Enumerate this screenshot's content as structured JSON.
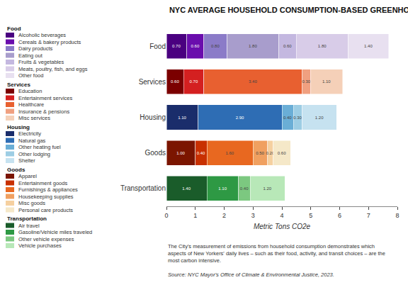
{
  "chart_data": {
    "type": "bar",
    "orientation": "horizontal",
    "stacked": true,
    "data_labels": true,
    "grid": false,
    "legend": "left",
    "title": "NYC AVERAGE HOUSEHOLD CONSUMPTION-BASED GREENHOUSE GAS INVENTORY",
    "xlabel": "Metric Tons CO2e",
    "footnote": "The City's measurement of emissions from household consumption demonstrates which\naspects of New Yorkers' daily lives – such as their food, activity, and transit choices – are the\nmost carbon intensive.",
    "source": "Source: NYC Mayor's Office of Climate & Environmental Justice, 2023.",
    "categories": [
      "Food",
      "Services",
      "Housing",
      "Goods",
      "Transportation"
    ],
    "xlim": [
      0,
      8
    ],
    "xticks": [
      0,
      1,
      2,
      3,
      4,
      5,
      6,
      7,
      8
    ],
    "series": [
      {
        "name": "Alcoholic beverages",
        "color": "#4a0080",
        "values": [
          0.7,
          null,
          null,
          null,
          null
        ],
        "value_labels": [
          "0.70",
          null,
          null,
          null,
          null
        ]
      },
      {
        "name": "Cereals & bakery products",
        "color": "#6a0dad",
        "values": [
          0.6,
          null,
          null,
          null,
          null
        ],
        "value_labels": [
          "0.60",
          null,
          null,
          null,
          null
        ]
      },
      {
        "name": "Dairy products",
        "color": "#8b7bc8",
        "values": [
          0.8,
          null,
          null,
          null,
          null
        ],
        "value_labels": [
          "0.80",
          null,
          null,
          null,
          null
        ]
      },
      {
        "name": "Eating out",
        "color": "#a89dcc",
        "values": [
          1.8,
          null,
          null,
          null,
          null
        ],
        "value_labels": [
          "1.80",
          null,
          null,
          null,
          null
        ]
      },
      {
        "name": "Fruits & vegetables",
        "color": "#c4b8e0",
        "values": [
          0.6,
          null,
          null,
          null,
          null
        ],
        "value_labels": [
          "0.60",
          null,
          null,
          null,
          null
        ]
      },
      {
        "name": "Meats, poultry, fish, and eggs",
        "color": "#d8cce8",
        "values": [
          1.8,
          null,
          null,
          null,
          null
        ],
        "value_labels": [
          "1.80",
          null,
          null,
          null,
          null
        ]
      },
      {
        "name": "Other food",
        "color": "#e8e0f0",
        "values": [
          1.4,
          null,
          null,
          null,
          null
        ],
        "value_labels": [
          "1.40",
          null,
          null,
          null,
          null
        ]
      },
      {
        "name": "Education",
        "color": "#7b0000",
        "values": [
          null,
          0.6,
          null,
          null,
          null
        ],
        "value_labels": [
          null,
          "0.60",
          null,
          null,
          null
        ]
      },
      {
        "name": "Entertainment services",
        "color": "#d42020",
        "values": [
          null,
          0.7,
          null,
          null,
          null
        ],
        "value_labels": [
          null,
          "0.70",
          null,
          null,
          null
        ]
      },
      {
        "name": "Healthcare",
        "color": "#e86030",
        "values": [
          null,
          3.4,
          null,
          null,
          null
        ],
        "value_labels": [
          null,
          "3.40",
          null,
          null,
          null
        ]
      },
      {
        "name": "Insurance & pensions",
        "color": "#f0a080",
        "values": [
          null,
          0.3,
          null,
          null,
          null
        ],
        "value_labels": [
          null,
          "0.30",
          null,
          null,
          null
        ]
      },
      {
        "name": "Misc services",
        "color": "#f5d0b8",
        "values": [
          null,
          1.1,
          null,
          null,
          null
        ],
        "value_labels": [
          null,
          "1.10",
          null,
          null,
          null
        ]
      },
      {
        "name": "Electricity",
        "color": "#1a2d6b",
        "values": [
          null,
          null,
          1.1,
          null,
          null
        ],
        "value_labels": [
          null,
          null,
          "1.10",
          null,
          null
        ]
      },
      {
        "name": "Natural gas",
        "color": "#2e6db4",
        "values": [
          null,
          null,
          2.9,
          null,
          null
        ],
        "value_labels": [
          null,
          null,
          "2.90",
          null,
          null
        ]
      },
      {
        "name": "Other heating fuel",
        "color": "#6aaed6",
        "values": [
          null,
          null,
          0.4,
          null,
          null
        ],
        "value_labels": [
          null,
          null,
          "0.40",
          null,
          null
        ]
      },
      {
        "name": "Other lodging",
        "color": "#9dcde4",
        "values": [
          null,
          null,
          0.3,
          null,
          null
        ],
        "value_labels": [
          null,
          null,
          "0.30",
          null,
          null
        ]
      },
      {
        "name": "Shelter",
        "color": "#c6e2f0",
        "values": [
          null,
          null,
          1.2,
          null,
          null
        ],
        "value_labels": [
          null,
          null,
          "1.20",
          null,
          null
        ]
      },
      {
        "name": "Apparel",
        "color": "#7b1500",
        "values": [
          null,
          null,
          null,
          1.0,
          null
        ],
        "value_labels": [
          null,
          null,
          null,
          "1.00",
          null
        ]
      },
      {
        "name": "Entertainment goods",
        "color": "#c83000",
        "values": [
          null,
          null,
          null,
          0.4,
          null
        ],
        "value_labels": [
          null,
          null,
          null,
          "0.40",
          null
        ]
      },
      {
        "name": "Furnishings & appliances",
        "color": "#e86820",
        "values": [
          null,
          null,
          null,
          1.6,
          null
        ],
        "value_labels": [
          null,
          null,
          null,
          "1.60",
          null
        ]
      },
      {
        "name": "Housekeeping supplies",
        "color": "#f0a060",
        "values": [
          null,
          null,
          null,
          0.5,
          null
        ],
        "value_labels": [
          null,
          null,
          null,
          "0.50",
          null
        ]
      },
      {
        "name": "Misc goods",
        "color": "#f5d0a0",
        "values": [
          null,
          null,
          null,
          0.2,
          null
        ],
        "value_labels": [
          null,
          null,
          null,
          "0.20",
          null
        ]
      },
      {
        "name": "Personal care products",
        "color": "#f5e8c8",
        "values": [
          null,
          null,
          null,
          0.6,
          null
        ],
        "value_labels": [
          null,
          null,
          null,
          "0.60",
          null
        ]
      },
      {
        "name": "Air travel",
        "color": "#1a5c2a",
        "values": [
          null,
          null,
          null,
          null,
          1.4
        ],
        "value_labels": [
          null,
          null,
          null,
          null,
          "1.40"
        ]
      },
      {
        "name": "Gasoline/Vehicle miles traveled",
        "color": "#2e9944",
        "values": [
          null,
          null,
          null,
          null,
          1.1
        ],
        "value_labels": [
          null,
          null,
          null,
          null,
          "1.10"
        ]
      },
      {
        "name": "Other vehicle expenses",
        "color": "#7cc880",
        "values": [
          null,
          null,
          null,
          null,
          0.4
        ],
        "value_labels": [
          null,
          null,
          null,
          null,
          "0.40"
        ]
      },
      {
        "name": "Vehicle purchases",
        "color": "#b8e8b8",
        "values": [
          null,
          null,
          null,
          null,
          1.2
        ],
        "value_labels": [
          null,
          null,
          null,
          null,
          "1.20"
        ]
      }
    ]
  }
}
